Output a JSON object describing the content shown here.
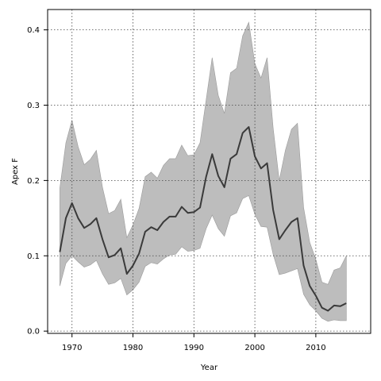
{
  "chart_data": {
    "type": "line",
    "title": "",
    "xlabel": "Year",
    "ylabel": "Apex F",
    "xlim": [
      1966,
      2019
    ],
    "ylim": [
      -0.003,
      0.427
    ],
    "x_ticks": [
      1970,
      1980,
      1990,
      2000,
      2010
    ],
    "y_ticks": [
      0.0,
      0.1,
      0.2,
      0.3,
      0.4
    ],
    "x_tick_labels": [
      "1970",
      "1980",
      "1990",
      "2000",
      "2010"
    ],
    "y_tick_labels": [
      "0.0",
      "0.1",
      "0.2",
      "0.3",
      "0.4"
    ],
    "grid": true,
    "x": [
      1968,
      1969,
      1970,
      1971,
      1972,
      1973,
      1974,
      1975,
      1976,
      1977,
      1978,
      1979,
      1980,
      1981,
      1982,
      1983,
      1984,
      1985,
      1986,
      1987,
      1988,
      1989,
      1990,
      1991,
      1992,
      1993,
      1994,
      1995,
      1996,
      1997,
      1998,
      1999,
      2000,
      2001,
      2002,
      2003,
      2004,
      2005,
      2006,
      2007,
      2008,
      2009,
      2010,
      2011,
      2012,
      2013,
      2014,
      2015
    ],
    "series": [
      {
        "name": "",
        "values": [
          0.105,
          0.15,
          0.17,
          0.15,
          0.137,
          0.142,
          0.15,
          0.122,
          0.098,
          0.101,
          0.11,
          0.076,
          0.087,
          0.103,
          0.132,
          0.138,
          0.134,
          0.145,
          0.152,
          0.152,
          0.165,
          0.157,
          0.158,
          0.164,
          0.205,
          0.235,
          0.206,
          0.191,
          0.229,
          0.235,
          0.263,
          0.271,
          0.232,
          0.216,
          0.223,
          0.161,
          0.122,
          0.134,
          0.145,
          0.15,
          0.087,
          0.06,
          0.047,
          0.031,
          0.027,
          0.034,
          0.033,
          0.037
        ]
      }
    ],
    "band": {
      "upper": [
        0.19,
        0.25,
        0.28,
        0.245,
        0.221,
        0.228,
        0.24,
        0.191,
        0.156,
        0.16,
        0.175,
        0.124,
        0.141,
        0.163,
        0.205,
        0.211,
        0.203,
        0.22,
        0.229,
        0.229,
        0.247,
        0.233,
        0.234,
        0.25,
        0.307,
        0.363,
        0.313,
        0.289,
        0.343,
        0.349,
        0.392,
        0.41,
        0.355,
        0.336,
        0.363,
        0.27,
        0.2,
        0.24,
        0.268,
        0.276,
        0.164,
        0.118,
        0.095,
        0.065,
        0.062,
        0.081,
        0.084,
        0.1
      ],
      "lower": [
        0.06,
        0.09,
        0.1,
        0.092,
        0.085,
        0.088,
        0.094,
        0.076,
        0.062,
        0.064,
        0.07,
        0.048,
        0.055,
        0.065,
        0.086,
        0.091,
        0.089,
        0.096,
        0.101,
        0.102,
        0.112,
        0.106,
        0.107,
        0.11,
        0.136,
        0.154,
        0.136,
        0.126,
        0.153,
        0.157,
        0.176,
        0.18,
        0.155,
        0.139,
        0.138,
        0.102,
        0.075,
        0.077,
        0.08,
        0.083,
        0.049,
        0.035,
        0.027,
        0.017,
        0.013,
        0.015,
        0.014,
        0.014
      ]
    },
    "colors": {
      "line": "#3a3a3a",
      "band": "#bdbdbd",
      "band_edge": "#9a9a9a",
      "grid": "#444444",
      "frame": "#000000"
    }
  }
}
